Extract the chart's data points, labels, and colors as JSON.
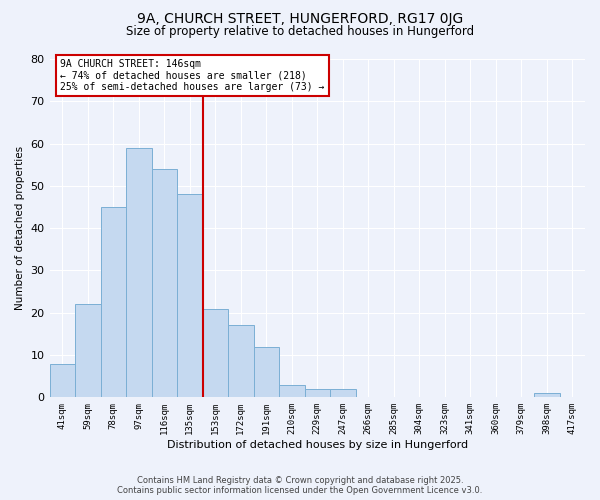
{
  "title": "9A, CHURCH STREET, HUNGERFORD, RG17 0JG",
  "subtitle": "Size of property relative to detached houses in Hungerford",
  "xlabel": "Distribution of detached houses by size in Hungerford",
  "ylabel": "Number of detached properties",
  "bin_labels": [
    "41sqm",
    "59sqm",
    "78sqm",
    "97sqm",
    "116sqm",
    "135sqm",
    "153sqm",
    "172sqm",
    "191sqm",
    "210sqm",
    "229sqm",
    "247sqm",
    "266sqm",
    "285sqm",
    "304sqm",
    "323sqm",
    "341sqm",
    "360sqm",
    "379sqm",
    "398sqm",
    "417sqm"
  ],
  "bar_values": [
    8,
    22,
    45,
    59,
    54,
    48,
    21,
    17,
    12,
    3,
    2,
    2,
    0,
    0,
    0,
    0,
    0,
    0,
    0,
    1,
    0
  ],
  "bar_color": "#c5d9f0",
  "bar_edge_color": "#7bafd4",
  "vline_x": 6.0,
  "vline_color": "#cc0000",
  "ylim": [
    0,
    80
  ],
  "yticks": [
    0,
    10,
    20,
    30,
    40,
    50,
    60,
    70,
    80
  ],
  "annotation_line1": "9A CHURCH STREET: 146sqm",
  "annotation_line2": "← 74% of detached houses are smaller (218)",
  "annotation_line3": "25% of semi-detached houses are larger (73) →",
  "annotation_box_edge": "#cc0000",
  "bg_color": "#eef2fb",
  "plot_bg_color": "#eef2fb",
  "grid_color": "#ffffff",
  "footer_line1": "Contains HM Land Registry data © Crown copyright and database right 2025.",
  "footer_line2": "Contains public sector information licensed under the Open Government Licence v3.0.",
  "title_fontsize": 10,
  "subtitle_fontsize": 8.5
}
